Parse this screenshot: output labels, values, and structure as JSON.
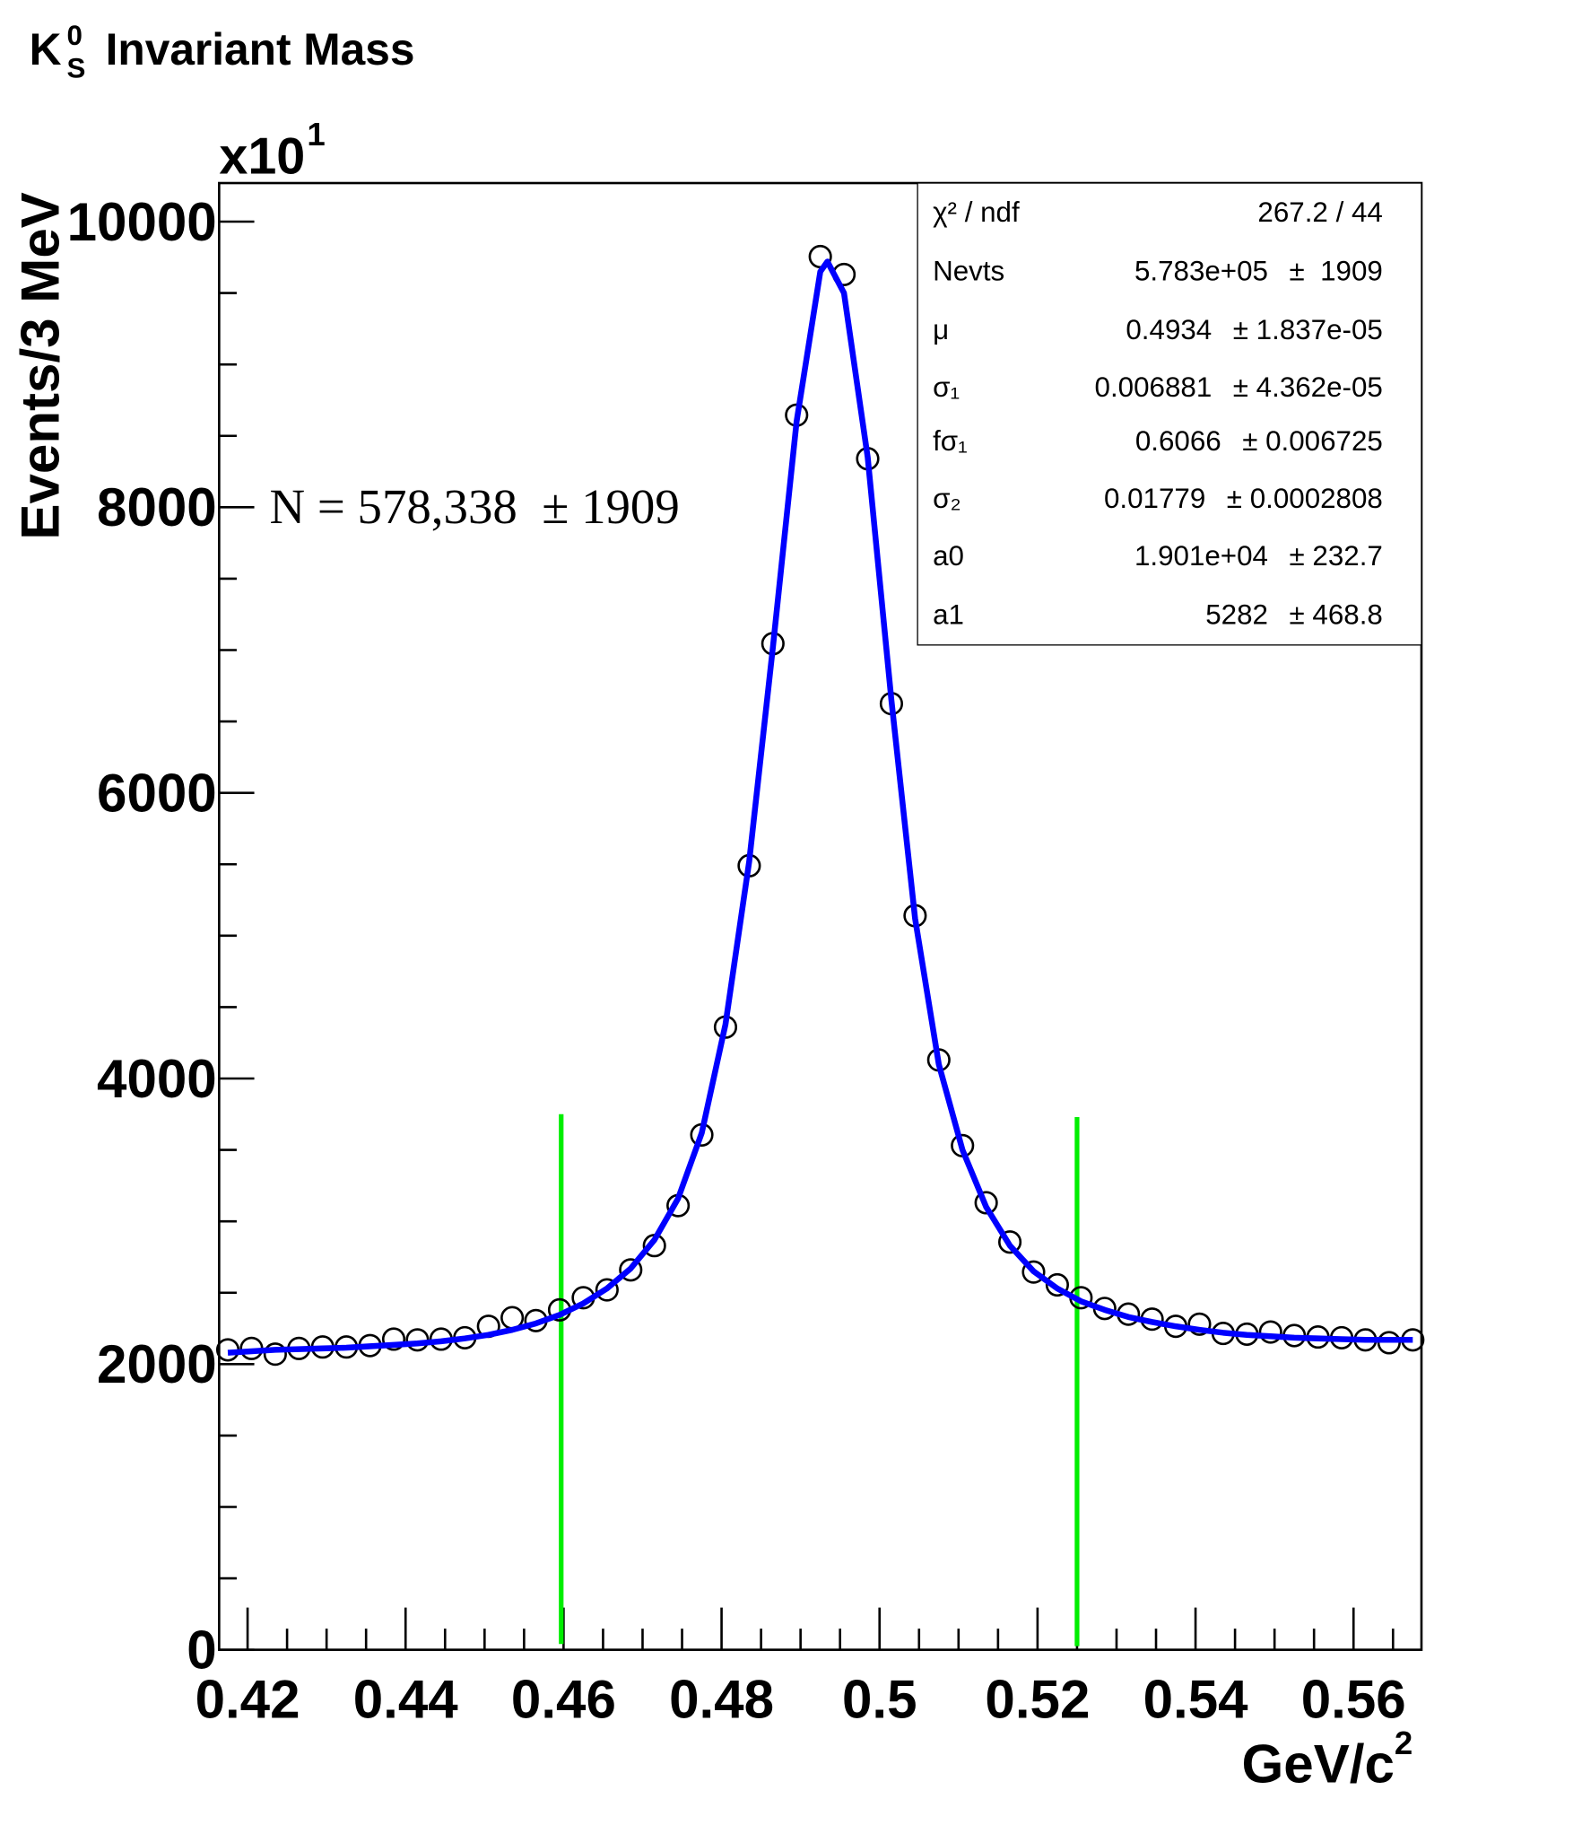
{
  "chart_data": {
    "type": "scatter",
    "title_symbol": "K",
    "title_sup": "0",
    "title_sub": "S",
    "title": "Invariant Mass",
    "x_label": "GeV/c",
    "x_label_sup": "2",
    "y_label": "Events/3 MeV",
    "y_multiplier": "x10",
    "y_multiplier_sup": "1",
    "annotation": "N = 578,338  ± 1909",
    "xlim": [
      0.4164,
      0.5686
    ],
    "ylim": [
      0,
      10270
    ],
    "xticks": [
      0.42,
      0.44,
      0.46,
      0.48,
      0.5,
      0.52,
      0.54,
      0.56
    ],
    "yticks": [
      0,
      2000,
      4000,
      6000,
      8000,
      10000
    ],
    "xminor_ticks": [
      0.425,
      0.43,
      0.435,
      0.445,
      0.45,
      0.455,
      0.465,
      0.47,
      0.475,
      0.485,
      0.49,
      0.495,
      0.505,
      0.51,
      0.515,
      0.525,
      0.53,
      0.535,
      0.545,
      0.55,
      0.555,
      0.565
    ],
    "yminor_ticks": [
      500,
      1000,
      1500,
      2500,
      3000,
      3500,
      4500,
      5000,
      5500,
      6500,
      7000,
      7500,
      8500,
      9000,
      9500
    ],
    "series": [
      {
        "type": "scatter",
        "color": "#000000",
        "x": [
          0.4175,
          0.4205,
          0.4235,
          0.4265,
          0.4295,
          0.4325,
          0.4355,
          0.4385,
          0.4415,
          0.4445,
          0.4475,
          0.4505,
          0.4535,
          0.4565,
          0.4595,
          0.4625,
          0.4655,
          0.4685,
          0.4715,
          0.4745,
          0.4775,
          0.4805,
          0.4835,
          0.4865,
          0.4895,
          0.4925,
          0.4955,
          0.4985,
          0.5015,
          0.5045,
          0.5075,
          0.5105,
          0.5135,
          0.5165,
          0.5195,
          0.5225,
          0.5255,
          0.5285,
          0.5315,
          0.5345,
          0.5375,
          0.5405,
          0.5435,
          0.5465,
          0.5495,
          0.5525,
          0.5555,
          0.5585,
          0.5615,
          0.5645,
          0.5675
        ],
        "values": [
          2100,
          2110,
          2070,
          2110,
          2120,
          2120,
          2130,
          2175,
          2170,
          2175,
          2185,
          2265,
          2325,
          2305,
          2380,
          2465,
          2520,
          2660,
          2830,
          3110,
          3605,
          4360,
          5490,
          7045,
          8645,
          9755,
          9630,
          8340,
          6625,
          5140,
          4130,
          3530,
          3130,
          2855,
          2645,
          2555,
          2465,
          2390,
          2350,
          2315,
          2265,
          2280,
          2215,
          2210,
          2225,
          2200,
          2190,
          2185,
          2170,
          2150,
          2170
        ]
      },
      {
        "type": "line",
        "color": "#0000ff",
        "x": [
          0.4175,
          0.4205,
          0.4235,
          0.4265,
          0.4295,
          0.4325,
          0.4355,
          0.4385,
          0.4415,
          0.4445,
          0.4475,
          0.4505,
          0.4535,
          0.4565,
          0.4595,
          0.4625,
          0.4655,
          0.4685,
          0.4715,
          0.4745,
          0.4775,
          0.4805,
          0.4835,
          0.4865,
          0.4895,
          0.4925,
          0.4934,
          0.4955,
          0.4985,
          0.5015,
          0.5045,
          0.5075,
          0.5105,
          0.5135,
          0.5165,
          0.5195,
          0.5225,
          0.5255,
          0.5285,
          0.5315,
          0.5345,
          0.5375,
          0.5405,
          0.5435,
          0.5465,
          0.5495,
          0.5525,
          0.5555,
          0.5585,
          0.5615,
          0.5645,
          0.5675
        ],
        "values": [
          2080,
          2090,
          2100,
          2105,
          2110,
          2115,
          2125,
          2135,
          2145,
          2160,
          2180,
          2205,
          2240,
          2285,
          2345,
          2425,
          2530,
          2670,
          2870,
          3160,
          3620,
          4380,
          5520,
          7020,
          8600,
          9650,
          9720,
          9500,
          8350,
          6650,
          5120,
          4100,
          3500,
          3100,
          2830,
          2650,
          2530,
          2440,
          2380,
          2330,
          2295,
          2265,
          2240,
          2220,
          2205,
          2195,
          2185,
          2180,
          2175,
          2170,
          2170,
          2170
        ]
      }
    ],
    "vlines": [
      {
        "x": 0.4597,
        "ymin": 40,
        "ymax": 3750,
        "color": "#00ee00"
      },
      {
        "x": 0.525,
        "ymin": 25,
        "ymax": 3730,
        "color": "#00ee00"
      }
    ],
    "stats": {
      "rows": [
        {
          "label": "χ² / ndf",
          "value": "267.2 / 44"
        },
        {
          "label": "Nevts",
          "value": "5.783e+05",
          "error": "±  1909"
        },
        {
          "label": "μ",
          "value": "0.4934",
          "error": "± 1.837e-05"
        },
        {
          "label": "σ₁",
          "value": "0.006881",
          "error": "± 4.362e-05"
        },
        {
          "label": "fσ₁",
          "value": "0.6066",
          "error": "± 0.006725"
        },
        {
          "label": "σ₂",
          "value": "0.01779",
          "error": "± 0.0002808"
        },
        {
          "label": "a0",
          "value": "1.901e+04",
          "error": "± 232.7"
        },
        {
          "label": "a1",
          "value": "5282",
          "error": "± 468.8"
        }
      ]
    }
  }
}
